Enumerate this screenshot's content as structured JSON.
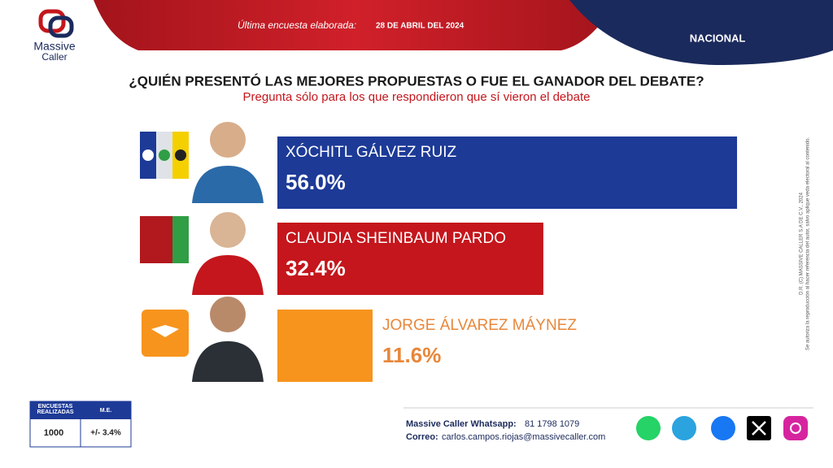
{
  "header": {
    "logo_top": "Massive",
    "logo_bottom": "Caller",
    "survey_label": "Última encuesta elaborada:",
    "survey_date": "28 DE ABRIL DEL 2024",
    "scope": "NACIONAL"
  },
  "chart_data": {
    "type": "bar",
    "orientation": "horizontal",
    "title": "¿QUIÉN PRESENTÓ LAS MEJORES PROPUESTAS O FUE EL GANADOR DEL DEBATE?",
    "subtitle": "Pregunta sólo para los que respondieron que sí vieron el debate",
    "categories": [
      "XÓCHITL GÁLVEZ RUIZ",
      "CLAUDIA SHEINBAUM PARDO",
      "JORGE ÁLVAREZ MÁYNEZ"
    ],
    "values": [
      56.0,
      32.4,
      11.6
    ],
    "value_labels": [
      "56.0%",
      "32.4%",
      "11.6%"
    ],
    "colors": [
      "#1d3a97",
      "#c4161c",
      "#f7941d"
    ],
    "label_colors": [
      "#ffffff",
      "#ffffff",
      "#e8873a"
    ]
  },
  "table": {
    "header": [
      "ENCUESTAS REALIZADAS",
      "M.E."
    ],
    "rows": [
      [
        "1000",
        "+/- 3.4%"
      ]
    ]
  },
  "footer": {
    "whatsapp_label": "Massive Caller Whatsapp:",
    "whatsapp": "81 1798 1079",
    "email_label": "Correo:",
    "email": "carlos.campos.riojas@massivecaller.com"
  },
  "side_note": [
    "D.R. (C) MASSIVE CALLER S.A DE C.V., 2024",
    "Se autoriza la reproducción al hacer referencia del autor, salvo aplique veda electoral al contenido."
  ]
}
